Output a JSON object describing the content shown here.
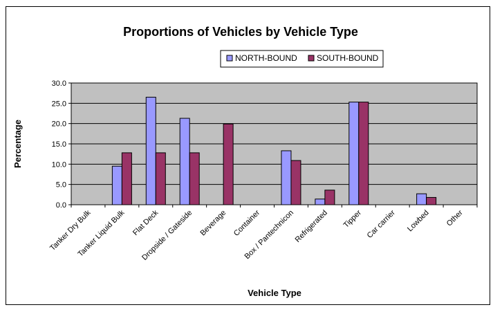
{
  "colors": {
    "plot_bg": "#c0c0c0",
    "north": "#9999ff",
    "south": "#993366",
    "grid": "#000000"
  },
  "chart_data": {
    "type": "bar",
    "title": "Proportions of Vehicles by Vehicle Type",
    "xlabel": "Vehicle Type",
    "ylabel": "Percentage",
    "ylim": [
      0,
      30
    ],
    "yticks": [
      "0.0",
      "5.0",
      "10.0",
      "15.0",
      "20.0",
      "25.0",
      "30.0"
    ],
    "grid": true,
    "legend_position": "top-right",
    "categories": [
      "Tanker Dry Bulk",
      "Tanker Liquid Bulk",
      "Flat Deck",
      "Dropside / Gateside",
      "Beverage",
      "Container",
      "Box / Pantechnicon",
      "Refrigerated",
      "Tipper",
      "Car carrier",
      "Lowbed",
      "Other"
    ],
    "series": [
      {
        "name": "NORTH-BOUND",
        "values": [
          0,
          9.5,
          26.5,
          21.3,
          0,
          0,
          13.3,
          1.4,
          25.3,
          0,
          2.7,
          0
        ]
      },
      {
        "name": "SOUTH-BOUND",
        "values": [
          0,
          12.8,
          12.8,
          12.8,
          19.9,
          0,
          10.9,
          3.6,
          25.3,
          0,
          1.8,
          0
        ]
      }
    ]
  }
}
